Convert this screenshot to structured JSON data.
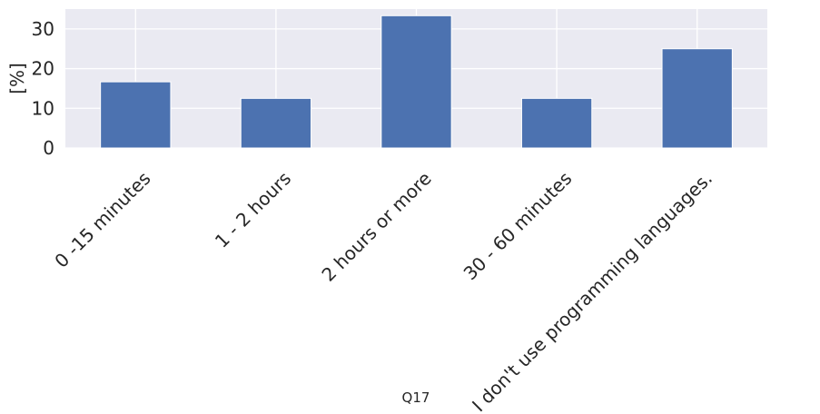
{
  "chart_data": {
    "type": "bar",
    "categories": [
      "0 -15 minutes",
      "1 - 2 hours",
      "2 hours or more",
      "30 - 60 minutes",
      "I don't use programming languages."
    ],
    "values": [
      16.67,
      12.5,
      33.33,
      12.5,
      25.0
    ],
    "xlabel": "Q17",
    "ylabel": "[%]",
    "ylim": [
      0,
      35
    ],
    "yticks": [
      0,
      10,
      20,
      30
    ],
    "bar_color": "#4c72b0",
    "plot_background": "#eaeaf2",
    "grid": true,
    "grid_color": "#ffffff",
    "tick_rotation_deg": -45
  }
}
